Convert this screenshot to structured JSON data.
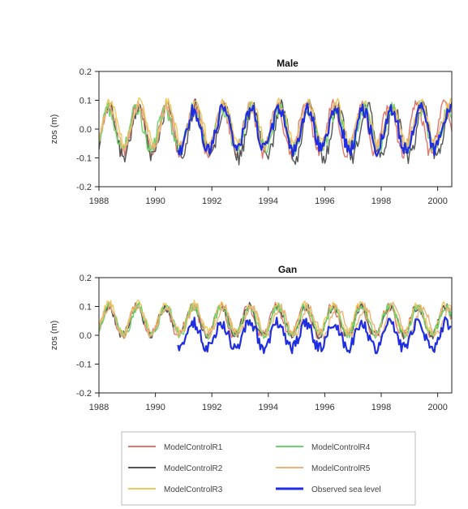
{
  "chart_data": [
    {
      "type": "line",
      "title": "Male",
      "ylabel": "zos (m)",
      "xlim": [
        1988,
        2000.5
      ],
      "ylim": [
        -0.2,
        0.2
      ],
      "x_ticks": [
        "1988",
        "1990",
        "1992",
        "1994",
        "1996",
        "1998",
        "2000"
      ],
      "y_ticks": [
        "0.2",
        "0.1",
        "0.0",
        "-0.1",
        "-0.2"
      ],
      "series": [
        {
          "name": "ModelControlR1",
          "color": "#e0776d",
          "start": 1988.0,
          "end": 2000.5,
          "mean": 0.0,
          "amp": 0.085,
          "noise": 0.02,
          "seed": 11
        },
        {
          "name": "ModelControlR2",
          "color": "#555555",
          "start": 1988.0,
          "end": 2000.5,
          "mean": -0.01,
          "amp": 0.09,
          "noise": 0.025,
          "seed": 23
        },
        {
          "name": "ModelControlR3",
          "color": "#f0c75a",
          "start": 1988.0,
          "end": 2000.5,
          "mean": 0.02,
          "amp": 0.07,
          "noise": 0.02,
          "seed": 37
        },
        {
          "name": "ModelControlR4",
          "color": "#6dd56d",
          "start": 1988.0,
          "end": 2000.5,
          "mean": 0.0,
          "amp": 0.07,
          "noise": 0.025,
          "seed": 41
        },
        {
          "name": "ModelControlR5",
          "color": "#e8b47a",
          "start": 1988.0,
          "end": 2000.5,
          "mean": 0.01,
          "amp": 0.07,
          "noise": 0.02,
          "seed": 53
        },
        {
          "name": "Observed sea level",
          "color": "#1f2ee0",
          "start": 1990.8,
          "end": 2000.5,
          "mean": 0.0,
          "amp": 0.07,
          "noise": 0.025,
          "seed": 67
        }
      ]
    },
    {
      "type": "line",
      "title": "Gan",
      "ylabel": "zos (m)",
      "xlim": [
        1988,
        2000.5
      ],
      "ylim": [
        -0.2,
        0.2
      ],
      "x_ticks": [
        "1988",
        "1990",
        "1992",
        "1994",
        "1996",
        "1998",
        "2000"
      ],
      "y_ticks": [
        "0.2",
        "0.1",
        "0.0",
        "-0.1",
        "-0.2"
      ],
      "series": [
        {
          "name": "ModelControlR1",
          "color": "#e0776d",
          "start": 1988.0,
          "end": 2000.5,
          "mean": 0.05,
          "amp": 0.05,
          "noise": 0.015,
          "seed": 13
        },
        {
          "name": "ModelControlR2",
          "color": "#555555",
          "start": 1988.0,
          "end": 2000.5,
          "mean": 0.05,
          "amp": 0.05,
          "noise": 0.015,
          "seed": 29
        },
        {
          "name": "ModelControlR3",
          "color": "#f0c75a",
          "start": 1988.0,
          "end": 2000.5,
          "mean": 0.06,
          "amp": 0.05,
          "noise": 0.015,
          "seed": 31
        },
        {
          "name": "ModelControlR4",
          "color": "#6dd56d",
          "start": 1988.0,
          "end": 2000.5,
          "mean": 0.05,
          "amp": 0.05,
          "noise": 0.015,
          "seed": 43
        },
        {
          "name": "ModelControlR5",
          "color": "#e8b47a",
          "start": 1988.0,
          "end": 2000.5,
          "mean": 0.05,
          "amp": 0.05,
          "noise": 0.015,
          "seed": 59
        },
        {
          "name": "Observed sea level",
          "color": "#1f2ee0",
          "start": 1990.8,
          "end": 2000.5,
          "mean": 0.0,
          "amp": 0.045,
          "noise": 0.02,
          "seed": 71
        }
      ]
    }
  ],
  "legend": {
    "placement": "bottom",
    "entries": [
      {
        "label": "ModelControlR1",
        "color": "#e0776d"
      },
      {
        "label": "ModelControlR2",
        "color": "#555555"
      },
      {
        "label": "ModelControlR3",
        "color": "#f0c75a"
      },
      {
        "label": "ModelControlR4",
        "color": "#6dd56d"
      },
      {
        "label": "ModelControlR5",
        "color": "#e8b47a"
      },
      {
        "label": "Observed sea level",
        "color": "#1f2ee0"
      }
    ]
  }
}
